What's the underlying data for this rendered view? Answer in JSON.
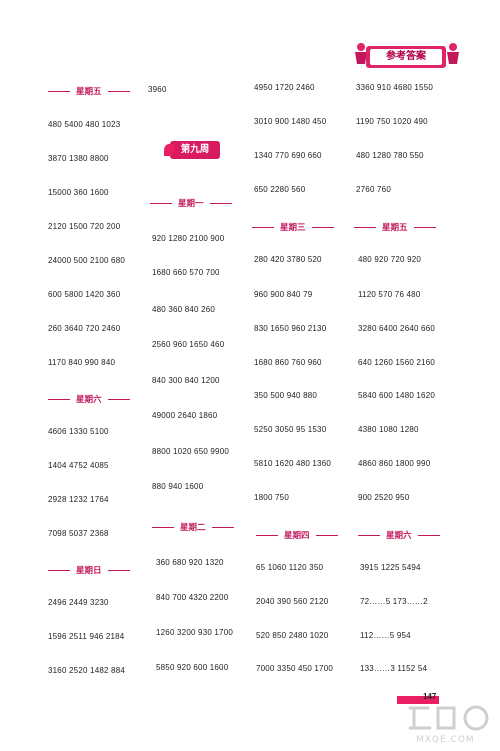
{
  "banner": {
    "title": "参考答案"
  },
  "week_badge": "第九周",
  "page_number": "147",
  "watermark": {
    "text": "答案圈",
    "url": "MXQE.COM"
  },
  "col1": {
    "friday": {
      "heading": "星期五",
      "rows": [
        "3960",
        "480  5400  480  1023",
        "3870   1380    8800",
        "15000    360    1600",
        "2120  1500  720  200",
        "24000  500  2100  680",
        "600  5800  1420  360",
        "260  3640  720  2460",
        "1170  840  990  840"
      ]
    },
    "saturday": {
      "heading": "星期六",
      "rows": [
        "4606    1330    5100",
        "1404    4752    4085",
        "2928    1232    1764",
        "7098  5037  2368"
      ]
    },
    "sunday": {
      "heading": "星期日",
      "rows": [
        "2496    2449    3230",
        "1596  2511  946  2184",
        "3160  2520  1482  884"
      ]
    }
  },
  "col2": {
    "monday": {
      "heading": "星期一",
      "rows": [
        "920  1280  2100  900",
        "1680  660  570  700",
        "480  360  840  260",
        "2560  960  1650  460",
        "840  300  840  1200",
        "49000    2640    1860",
        "8800  1020  650  9900",
        "880  940  1600"
      ]
    },
    "tuesday": {
      "heading": "星期二",
      "rows": [
        "360  680  920  1320",
        "840  700  4320  2200",
        "1260  3200  930  1700",
        "5850  920  600  1600"
      ]
    }
  },
  "col3": {
    "top_rows": [
      "4950    1720    2460",
      "3010  900  1480  450",
      "1340  770  690  660",
      "650  2280  560"
    ],
    "wednesday": {
      "heading": "星期三",
      "rows": [
        "280  420  3780  520",
        "960  900  840  79",
        "830  1650  960  2130",
        "1680  860  760  960",
        "350  500  940  880",
        "5250  3050  95  1530",
        "5810  1620  480  1360",
        "1800  750"
      ]
    },
    "thursday": {
      "heading": "星期四",
      "rows": [
        "65  1060  1120  350",
        "2040  390  560  2120",
        "520  850  2480  1020",
        "7000  3350  450  1700"
      ]
    }
  },
  "col4": {
    "top_rows": [
      "3360  910  4680  1550",
      "1190  750  1020  490",
      "480  1280  780  550",
      "2760  760"
    ],
    "friday": {
      "heading": "星期五",
      "rows": [
        "480  920  720  920",
        "1120  570  76  480",
        "3280  6400  2640  660",
        "640  1260  1560  2160",
        "5840  600  1480  1620",
        "4380      1080      1280",
        "4860  860  1800  990",
        "900  2520  950"
      ]
    },
    "saturday": {
      "heading": "星期六",
      "rows": [
        "3915  1225  5494",
        "72……5   173……2",
        "112……5   954",
        "133……3   1152  54"
      ]
    }
  }
}
